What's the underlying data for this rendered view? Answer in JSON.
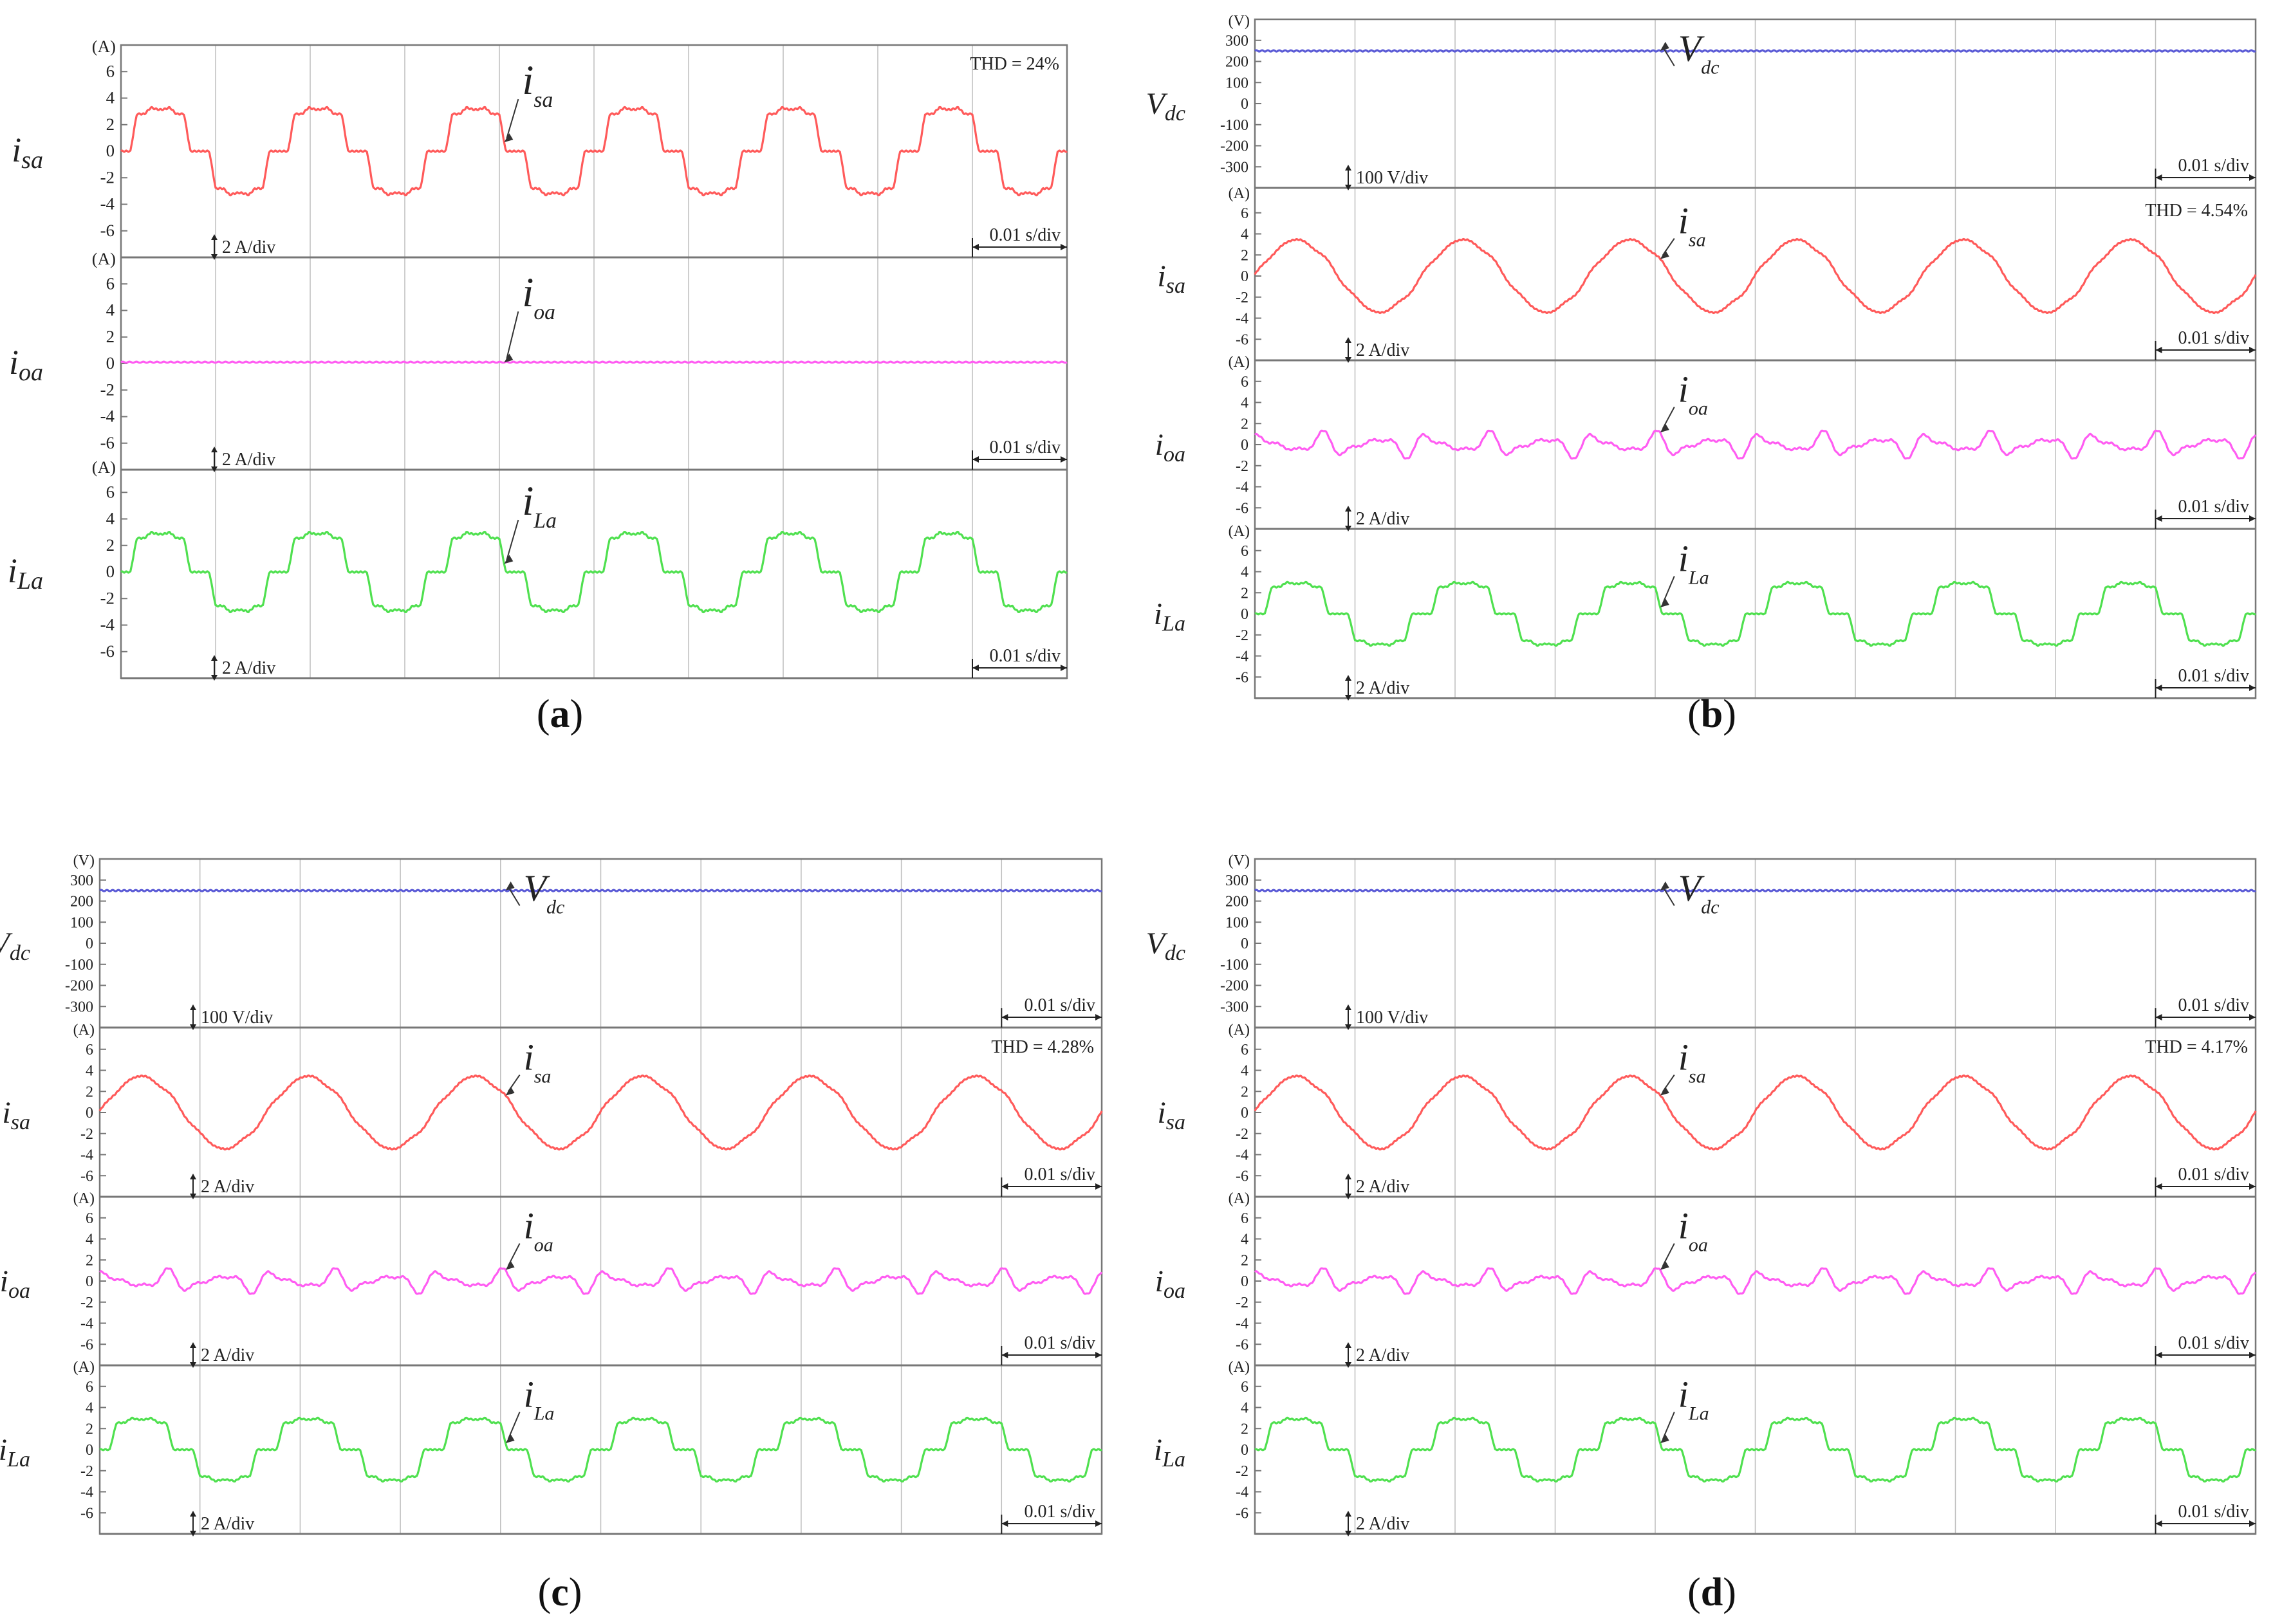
{
  "figure": {
    "colors": {
      "isa": "#ff5a5a",
      "ioa": "#ff5cf2",
      "iLa": "#4fe04f",
      "vdc": "#5b5bd6",
      "axis": "#777777",
      "grid": "#bdbdbd",
      "text": "#222222"
    },
    "time_scale_label": "0.01 s/div",
    "unit_current": "(A)",
    "unit_voltage": "(V)",
    "current_scale_label": "2 A/div",
    "voltage_scale_label": "100 V/div"
  },
  "chart_data": [
    {
      "type": "line",
      "caption": "(a)",
      "time_per_div_s": 0.01,
      "time_divisions": 10,
      "panels": [
        {
          "signal": "isa",
          "ylabel_main": "i",
          "ylabel_sub": "sa",
          "unit": "(A)",
          "yticks": [
            6,
            4,
            2,
            0,
            -2,
            -4,
            -6
          ],
          "ylim": [
            -8,
            8
          ],
          "scale_label": "2 A/div",
          "thd": "THD = 24%",
          "waveform": "stepped",
          "amplitude": 3.3,
          "cycles": 6,
          "annotation_main": "i",
          "annotation_sub": "sa"
        },
        {
          "signal": "ioa",
          "ylabel_main": "i",
          "ylabel_sub": "oa",
          "unit": "(A)",
          "yticks": [
            6,
            4,
            2,
            0,
            -2,
            -4,
            -6
          ],
          "ylim": [
            -8,
            8
          ],
          "scale_label": "2 A/div",
          "waveform": "flat",
          "amplitude": 0.1,
          "cycles": 6,
          "annotation_main": "i",
          "annotation_sub": "oa"
        },
        {
          "signal": "iLa",
          "ylabel_main": "i",
          "ylabel_sub": "La",
          "unit": "(A)",
          "yticks": [
            6,
            4,
            2,
            0,
            -2,
            -4,
            -6
          ],
          "ylim": [
            -8,
            8
          ],
          "scale_label": "2 A/div",
          "waveform": "stepped",
          "amplitude": 3.0,
          "cycles": 6,
          "annotation_main": "i",
          "annotation_sub": "La"
        }
      ]
    },
    {
      "type": "line",
      "caption": "(b)",
      "time_per_div_s": 0.01,
      "time_divisions": 10,
      "panels": [
        {
          "signal": "vdc",
          "ylabel_main": "V",
          "ylabel_sub": "dc",
          "unit": "(V)",
          "yticks": [
            300,
            200,
            100,
            0,
            -100,
            -200,
            -300
          ],
          "ylim": [
            -400,
            400
          ],
          "scale_label": "100 V/div",
          "waveform": "dc",
          "level": 250,
          "annotation_main": "V",
          "annotation_sub": "dc"
        },
        {
          "signal": "isa",
          "ylabel_main": "i",
          "ylabel_sub": "sa",
          "unit": "(A)",
          "yticks": [
            6,
            4,
            2,
            0,
            -2,
            -4,
            -6
          ],
          "ylim": [
            -8,
            8
          ],
          "scale_label": "2 A/div",
          "thd": "THD = 4.54%",
          "waveform": "sine",
          "amplitude": 3.4,
          "cycles": 6,
          "annotation_main": "i",
          "annotation_sub": "sa"
        },
        {
          "signal": "ioa",
          "ylabel_main": "i",
          "ylabel_sub": "oa",
          "unit": "(A)",
          "yticks": [
            6,
            4,
            2,
            0,
            -2,
            -4,
            -6
          ],
          "ylim": [
            -8,
            8
          ],
          "scale_label": "2 A/div",
          "waveform": "ripple",
          "amplitude": 1.2,
          "cycles": 6,
          "annotation_main": "i",
          "annotation_sub": "oa"
        },
        {
          "signal": "iLa",
          "ylabel_main": "i",
          "ylabel_sub": "La",
          "unit": "(A)",
          "yticks": [
            6,
            4,
            2,
            0,
            -2,
            -4,
            -6
          ],
          "ylim": [
            -8,
            8
          ],
          "scale_label": "2 A/div",
          "waveform": "stepped",
          "amplitude": 3.0,
          "cycles": 6,
          "annotation_main": "i",
          "annotation_sub": "La"
        }
      ]
    },
    {
      "type": "line",
      "caption": "(c)",
      "time_per_div_s": 0.01,
      "time_divisions": 10,
      "panels": [
        {
          "signal": "vdc",
          "ylabel_main": "V",
          "ylabel_sub": "dc",
          "unit": "(V)",
          "yticks": [
            300,
            200,
            100,
            0,
            -100,
            -200,
            -300
          ],
          "ylim": [
            -400,
            400
          ],
          "scale_label": "100 V/div",
          "waveform": "dc",
          "level": 250,
          "annotation_main": "V",
          "annotation_sub": "dc"
        },
        {
          "signal": "isa",
          "ylabel_main": "i",
          "ylabel_sub": "sa",
          "unit": "(A)",
          "yticks": [
            6,
            4,
            2,
            0,
            -2,
            -4,
            -6
          ],
          "ylim": [
            -8,
            8
          ],
          "scale_label": "2 A/div",
          "thd": "THD = 4.28%",
          "waveform": "sine",
          "amplitude": 3.4,
          "cycles": 6,
          "annotation_main": "i",
          "annotation_sub": "sa"
        },
        {
          "signal": "ioa",
          "ylabel_main": "i",
          "ylabel_sub": "oa",
          "unit": "(A)",
          "yticks": [
            6,
            4,
            2,
            0,
            -2,
            -4,
            -6
          ],
          "ylim": [
            -8,
            8
          ],
          "scale_label": "2 A/div",
          "waveform": "ripple",
          "amplitude": 1.1,
          "cycles": 6,
          "annotation_main": "i",
          "annotation_sub": "oa"
        },
        {
          "signal": "iLa",
          "ylabel_main": "i",
          "ylabel_sub": "La",
          "unit": "(A)",
          "yticks": [
            6,
            4,
            2,
            0,
            -2,
            -4,
            -6
          ],
          "ylim": [
            -8,
            8
          ],
          "scale_label": "2 A/div",
          "waveform": "stepped",
          "amplitude": 3.0,
          "cycles": 6,
          "annotation_main": "i",
          "annotation_sub": "La"
        }
      ]
    },
    {
      "type": "line",
      "caption": "(d)",
      "time_per_div_s": 0.01,
      "time_divisions": 10,
      "panels": [
        {
          "signal": "vdc",
          "ylabel_main": "V",
          "ylabel_sub": "dc",
          "unit": "(V)",
          "yticks": [
            300,
            200,
            100,
            0,
            -100,
            -200,
            -300
          ],
          "ylim": [
            -400,
            400
          ],
          "scale_label": "100 V/div",
          "waveform": "dc",
          "level": 250,
          "annotation_main": "V",
          "annotation_sub": "dc"
        },
        {
          "signal": "isa",
          "ylabel_main": "i",
          "ylabel_sub": "sa",
          "unit": "(A)",
          "yticks": [
            6,
            4,
            2,
            0,
            -2,
            -4,
            -6
          ],
          "ylim": [
            -8,
            8
          ],
          "scale_label": "2 A/div",
          "thd": "THD = 4.17%",
          "waveform": "sine",
          "amplitude": 3.4,
          "cycles": 6,
          "annotation_main": "i",
          "annotation_sub": "sa"
        },
        {
          "signal": "ioa",
          "ylabel_main": "i",
          "ylabel_sub": "oa",
          "unit": "(A)",
          "yticks": [
            6,
            4,
            2,
            0,
            -2,
            -4,
            -6
          ],
          "ylim": [
            -8,
            8
          ],
          "scale_label": "2 A/div",
          "waveform": "ripple",
          "amplitude": 1.1,
          "cycles": 6,
          "annotation_main": "i",
          "annotation_sub": "oa"
        },
        {
          "signal": "iLa",
          "ylabel_main": "i",
          "ylabel_sub": "La",
          "unit": "(A)",
          "yticks": [
            6,
            4,
            2,
            0,
            -2,
            -4,
            -6
          ],
          "ylim": [
            -8,
            8
          ],
          "scale_label": "2 A/div",
          "waveform": "stepped",
          "amplitude": 3.0,
          "cycles": 6,
          "annotation_main": "i",
          "annotation_sub": "La"
        }
      ]
    }
  ]
}
